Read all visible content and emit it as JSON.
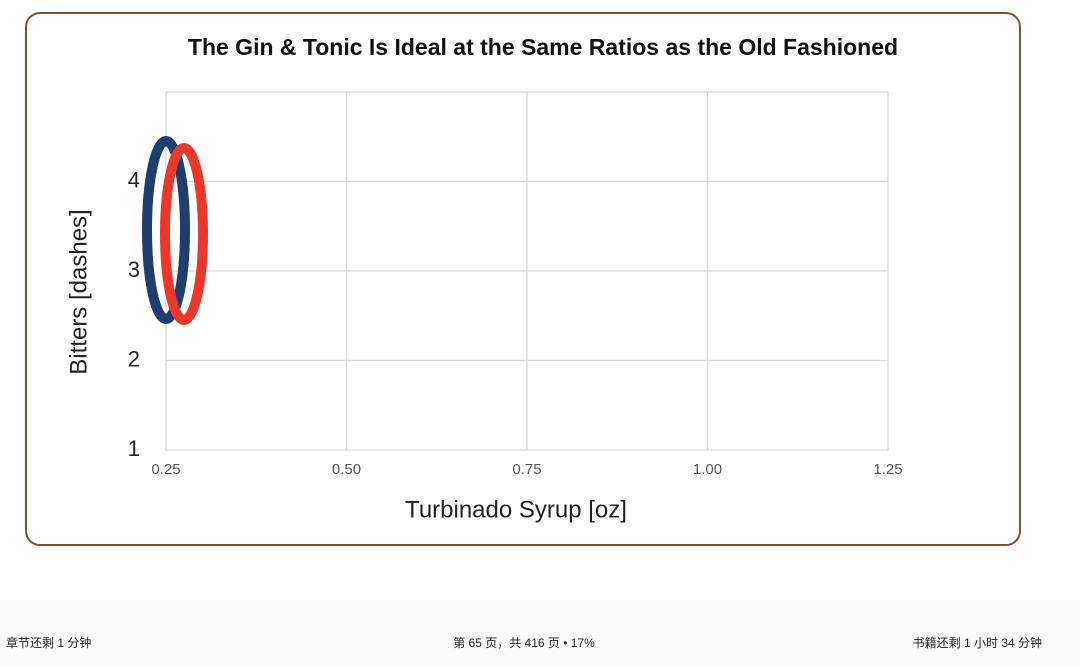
{
  "chart_data": {
    "type": "scatter",
    "title": "The Gin & Tonic Is Ideal at the Same Ratios as the Old Fashioned",
    "x_label": "Turbinado Syrup [oz]",
    "y_label": "Bitters [dashes]",
    "xlim": [
      0.25,
      1.25
    ],
    "xticks": [
      0.25,
      {
        "value": 0.5,
        "label": "0.50"
      },
      0.75,
      {
        "value": 1.0,
        "label": "1.00"
      },
      1.25
    ],
    "ylim": [
      1,
      5
    ],
    "yticks": [
      1,
      2,
      3,
      4
    ],
    "grid": true
  },
  "footer": {
    "left": "章节还剩 1 分钟",
    "center": "第 65 页，共 416 页 • 17%",
    "right": "书籍还剩 1 小时 34 分钟"
  }
}
